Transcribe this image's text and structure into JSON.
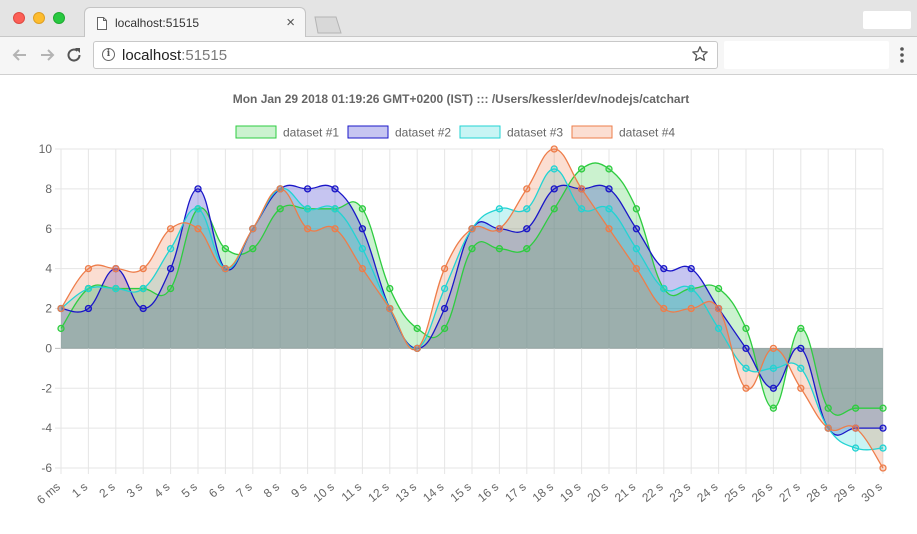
{
  "browser": {
    "tab_title": "localhost:51515",
    "close_symbol": "×",
    "url_host": "localhost",
    "url_port": ":51515",
    "icons": [
      "document-icon",
      "info-icon",
      "bookmark-star-icon",
      "back-icon",
      "forward-icon",
      "reload-icon",
      "menu-icon"
    ]
  },
  "chart_data": {
    "type": "line",
    "fill": true,
    "smooth": true,
    "title": "Mon Jan 29 2018 01:19:26 GMT+0200 (IST) ::: /Users/kessler/dev/nodejs/catchart",
    "categories": [
      "6 ms",
      "1 s",
      "2 s",
      "3 s",
      "4 s",
      "5 s",
      "6 s",
      "7 s",
      "8 s",
      "9 s",
      "10 s",
      "11 s",
      "12 s",
      "13 s",
      "14 s",
      "15 s",
      "16 s",
      "17 s",
      "18 s",
      "19 s",
      "20 s",
      "21 s",
      "22 s",
      "23 s",
      "24 s",
      "25 s",
      "26 s",
      "27 s",
      "28 s",
      "29 s",
      "30 s"
    ],
    "ylim": [
      -6,
      10
    ],
    "yticks": [
      10,
      8,
      6,
      4,
      2,
      0,
      -2,
      -4,
      -6
    ],
    "grid": true,
    "legend": "top",
    "series": [
      {
        "name": "dataset #1",
        "color": "#2ecc40",
        "fill": "rgba(46,204,64,0.25)",
        "values": [
          1,
          3,
          3,
          3,
          3,
          7,
          5,
          5,
          7,
          7,
          7,
          7,
          3,
          1,
          1,
          5,
          5,
          5,
          7,
          9,
          9,
          7,
          3,
          3,
          3,
          1,
          -3,
          1,
          -3,
          -3,
          -3
        ]
      },
      {
        "name": "dataset #2",
        "color": "#1a16c8",
        "fill": "rgba(26,22,200,0.25)",
        "values": [
          2,
          2,
          4,
          2,
          4,
          8,
          4,
          6,
          8,
          8,
          8,
          6,
          2,
          0,
          2,
          6,
          6,
          6,
          8,
          8,
          8,
          6,
          4,
          4,
          2,
          0,
          -2,
          0,
          -4,
          -4,
          -4
        ]
      },
      {
        "name": "dataset #3",
        "color": "#22d3d3",
        "fill": "rgba(34,211,211,0.25)",
        "values": [
          2,
          3,
          3,
          3,
          5,
          7,
          4,
          6,
          8,
          7,
          7,
          5,
          2,
          0,
          3,
          6,
          7,
          7,
          9,
          7,
          7,
          5,
          3,
          3,
          1,
          -1,
          -1,
          -1,
          -4,
          -5,
          -5
        ]
      },
      {
        "name": "dataset #4",
        "color": "#ee7d4a",
        "fill": "rgba(238,125,74,0.25)",
        "values": [
          2,
          4,
          4,
          4,
          6,
          6,
          4,
          6,
          8,
          6,
          6,
          4,
          2,
          0,
          4,
          6,
          6,
          8,
          10,
          8,
          6,
          4,
          2,
          2,
          2,
          -2,
          0,
          -2,
          -4,
          -4,
          -6
        ]
      }
    ]
  }
}
